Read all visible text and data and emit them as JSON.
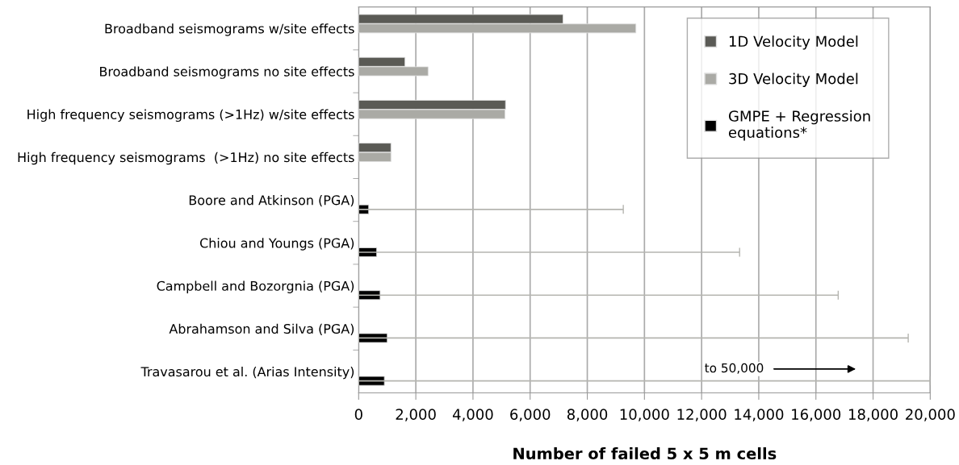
{
  "chart_data": {
    "type": "bar",
    "orientation": "horizontal",
    "xlabel": "Number of failed 5 x 5 m cells",
    "categories": [
      "Broadband seismograms w/site effects",
      "Broadband seismograms no site effects",
      "High frequency seismograms (>1Hz) w/site effects",
      "High frequency seismograms  (>1Hz) no site effects",
      "Boore and Atkinson (PGA)",
      "Chiou and Youngs (PGA)",
      "Campbell and Bozorgnia (PGA)",
      "Abrahamson and Silva (PGA)",
      "Travasarou et al. (Arias Intensity)"
    ],
    "series": [
      {
        "name": "1D Velocity Model",
        "color": "#5a5a55",
        "values": [
          7150,
          1620,
          5140,
          1130,
          null,
          null,
          null,
          null,
          null
        ]
      },
      {
        "name": "3D Velocity Model",
        "color": "#aaaaa5",
        "values": [
          9700,
          2430,
          5120,
          1130,
          null,
          null,
          null,
          null,
          null
        ]
      },
      {
        "name": "GMPE + Regression\nequations*",
        "color": "#000000",
        "values": [
          null,
          null,
          null,
          null,
          350,
          630,
          750,
          1000,
          900
        ],
        "errors": [
          null,
          null,
          null,
          null,
          [
            0,
            9260
          ],
          [
            0,
            13330
          ],
          [
            0,
            16780
          ],
          [
            0,
            19230
          ],
          [
            0,
            20000
          ]
        ]
      }
    ],
    "xlim": [
      0,
      20000
    ],
    "xticks": [
      0,
      {
        "value": 2000,
        "label": "2,000"
      },
      {
        "value": 4000,
        "label": "4,000"
      },
      {
        "value": 6000,
        "label": "6,000"
      },
      {
        "value": 8000,
        "label": "8,000"
      },
      {
        "value": 10000,
        "label": "10,000"
      },
      {
        "value": 12000,
        "label": "12,000"
      },
      {
        "value": 14000,
        "label": "14,000"
      },
      {
        "value": 16000,
        "label": "16,000"
      },
      {
        "value": 18000,
        "label": "18,000"
      },
      {
        "value": 20000,
        "label": "20,000"
      }
    ],
    "grid": "x",
    "legend": "top right",
    "annotations": [
      "to 50,000"
    ]
  }
}
